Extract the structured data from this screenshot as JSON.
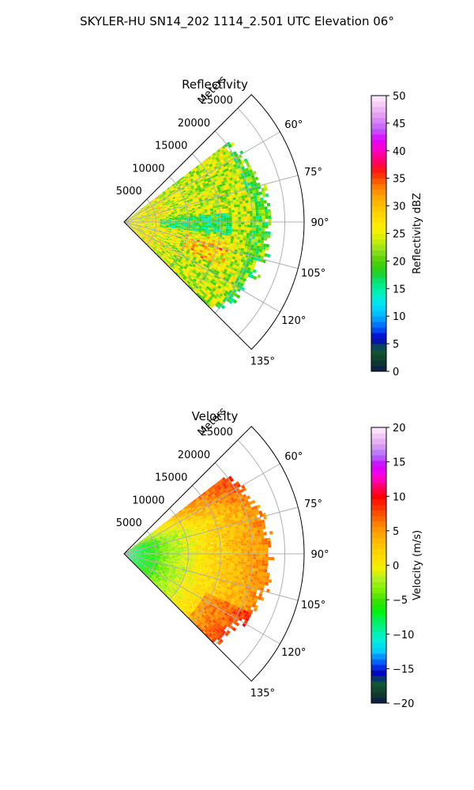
{
  "title": "SKYLER-HU  SN14_202  1114_2.501 UTC Elevation 06°",
  "chart_data": [
    {
      "type": "heatmap",
      "projection": "polar-sector",
      "title": "Reflectivity",
      "range_axis_label": "Meters",
      "range_ticks": [
        5000,
        10000,
        15000,
        20000,
        25000
      ],
      "range_tick_labels": [
        "5000",
        "10000",
        "15000",
        "20000",
        "25000"
      ],
      "rmax": 28000,
      "azimuth_range_deg": [
        45,
        135
      ],
      "azimuth_ticks": [
        60,
        75,
        90,
        105,
        120,
        135
      ],
      "azimuth_tick_labels": [
        "60°",
        "75°",
        "90°",
        "105°",
        "120°",
        "135°"
      ],
      "grid": true,
      "colorbar": {
        "label": "Reflectivity dBZ",
        "range": [
          0,
          50
        ],
        "ticks": [
          0,
          5,
          10,
          15,
          20,
          25,
          30,
          35,
          40,
          45,
          50
        ],
        "tick_labels": [
          "0",
          "5",
          "10",
          "15",
          "20",
          "25",
          "30",
          "35",
          "40",
          "45",
          "50"
        ],
        "stops": [
          {
            "v": 0,
            "c": "#0b1a4a"
          },
          {
            "v": 2,
            "c": "#123f2a"
          },
          {
            "v": 4,
            "c": "#0f5a3a"
          },
          {
            "v": 6,
            "c": "#0000c8"
          },
          {
            "v": 8,
            "c": "#0060ff"
          },
          {
            "v": 10,
            "c": "#00b4ff"
          },
          {
            "v": 12,
            "c": "#00e0ff"
          },
          {
            "v": 14,
            "c": "#00f0c0"
          },
          {
            "v": 16,
            "c": "#00e880"
          },
          {
            "v": 18,
            "c": "#20d020"
          },
          {
            "v": 20,
            "c": "#50d000"
          },
          {
            "v": 22,
            "c": "#90e020"
          },
          {
            "v": 24,
            "c": "#d0f000"
          },
          {
            "v": 26,
            "c": "#fff000"
          },
          {
            "v": 28,
            "c": "#ffdc00"
          },
          {
            "v": 30,
            "c": "#ffc000"
          },
          {
            "v": 32,
            "c": "#ffa000"
          },
          {
            "v": 34,
            "c": "#ff7000"
          },
          {
            "v": 36,
            "c": "#ff2000"
          },
          {
            "v": 38,
            "c": "#ff0060"
          },
          {
            "v": 40,
            "c": "#ff00c0"
          },
          {
            "v": 42,
            "c": "#e000ff"
          },
          {
            "v": 44,
            "c": "#c060ff"
          },
          {
            "v": 46,
            "c": "#e090f0"
          },
          {
            "v": 48,
            "c": "#f0c0f0"
          },
          {
            "v": 50,
            "c": "#fff0ff"
          }
        ]
      }
    },
    {
      "type": "heatmap",
      "projection": "polar-sector",
      "title": "Velocity",
      "range_axis_label": "Meters",
      "range_ticks": [
        5000,
        10000,
        15000,
        20000,
        25000
      ],
      "range_tick_labels": [
        "5000",
        "10000",
        "15000",
        "20000",
        "25000"
      ],
      "rmax": 28000,
      "azimuth_range_deg": [
        45,
        135
      ],
      "azimuth_ticks": [
        60,
        75,
        90,
        105,
        120,
        135
      ],
      "azimuth_tick_labels": [
        "60°",
        "75°",
        "90°",
        "105°",
        "120°",
        "135°"
      ],
      "grid": true,
      "colorbar": {
        "label": "Velocity (m/s)",
        "range": [
          -20,
          20
        ],
        "ticks": [
          -20,
          -15,
          -10,
          -5,
          0,
          5,
          10,
          15,
          20
        ],
        "tick_labels": [
          "−20",
          "−15",
          "−10",
          "−5",
          "0",
          "5",
          "10",
          "15",
          "20"
        ],
        "stops": [
          {
            "v": -20,
            "c": "#0b1a4a"
          },
          {
            "v": -18.5,
            "c": "#123f2a"
          },
          {
            "v": -17,
            "c": "#0f5a3a"
          },
          {
            "v": -15.5,
            "c": "#0000c8"
          },
          {
            "v": -14,
            "c": "#0060ff"
          },
          {
            "v": -12.5,
            "c": "#00c8ff"
          },
          {
            "v": -11,
            "c": "#00f0e0"
          },
          {
            "v": -9.5,
            "c": "#00f0a0"
          },
          {
            "v": -8,
            "c": "#00f060"
          },
          {
            "v": -6.5,
            "c": "#00f000"
          },
          {
            "v": -5,
            "c": "#40e000"
          },
          {
            "v": -3.5,
            "c": "#80f000"
          },
          {
            "v": -2,
            "c": "#b0f020"
          },
          {
            "v": -0.5,
            "c": "#f0f000"
          },
          {
            "v": 1,
            "c": "#ffe000"
          },
          {
            "v": 2.5,
            "c": "#ffcc00"
          },
          {
            "v": 4,
            "c": "#ffb000"
          },
          {
            "v": 5.5,
            "c": "#ff9000"
          },
          {
            "v": 7,
            "c": "#ff6000"
          },
          {
            "v": 8.5,
            "c": "#ff3000"
          },
          {
            "v": 10,
            "c": "#ff0000"
          },
          {
            "v": 11.5,
            "c": "#ff0070"
          },
          {
            "v": 13,
            "c": "#ff00e0"
          },
          {
            "v": 14.5,
            "c": "#d000ff"
          },
          {
            "v": 16,
            "c": "#b070ff"
          },
          {
            "v": 17.5,
            "c": "#e0a0f0"
          },
          {
            "v": 20,
            "c": "#fff0ff"
          }
        ]
      }
    }
  ]
}
